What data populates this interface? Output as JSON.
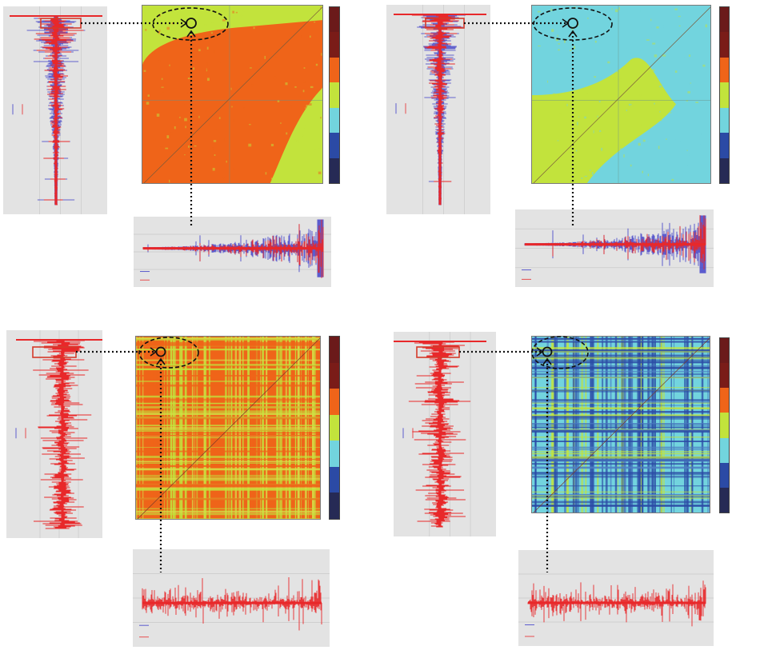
{
  "colormap": [
    "#6b1a1a",
    "#7a1c18",
    "#ef6419",
    "#c2e33c",
    "#72d4de",
    "#2b4aa5",
    "#262a55"
  ],
  "panels": [
    {
      "id": "top-left",
      "background": "#c2e33c",
      "dominant": "#ef6419",
      "pattern": "block",
      "signal": "red-blue"
    },
    {
      "id": "top-right",
      "background": "#72d4de",
      "dominant": "#c2e33c",
      "pattern": "block",
      "signal": "red-blue"
    },
    {
      "id": "bottom-left",
      "background": "#ef6419",
      "dominant": "#c2e33c",
      "pattern": "stripes",
      "signal": "red"
    },
    {
      "id": "bottom-right",
      "background": "#72d4de",
      "dominant": "#2b4aa5",
      "pattern": "stripes",
      "signal": "red"
    }
  ],
  "signal_colors": {
    "red": "#e8282a",
    "blue": "#3a3ac8"
  }
}
